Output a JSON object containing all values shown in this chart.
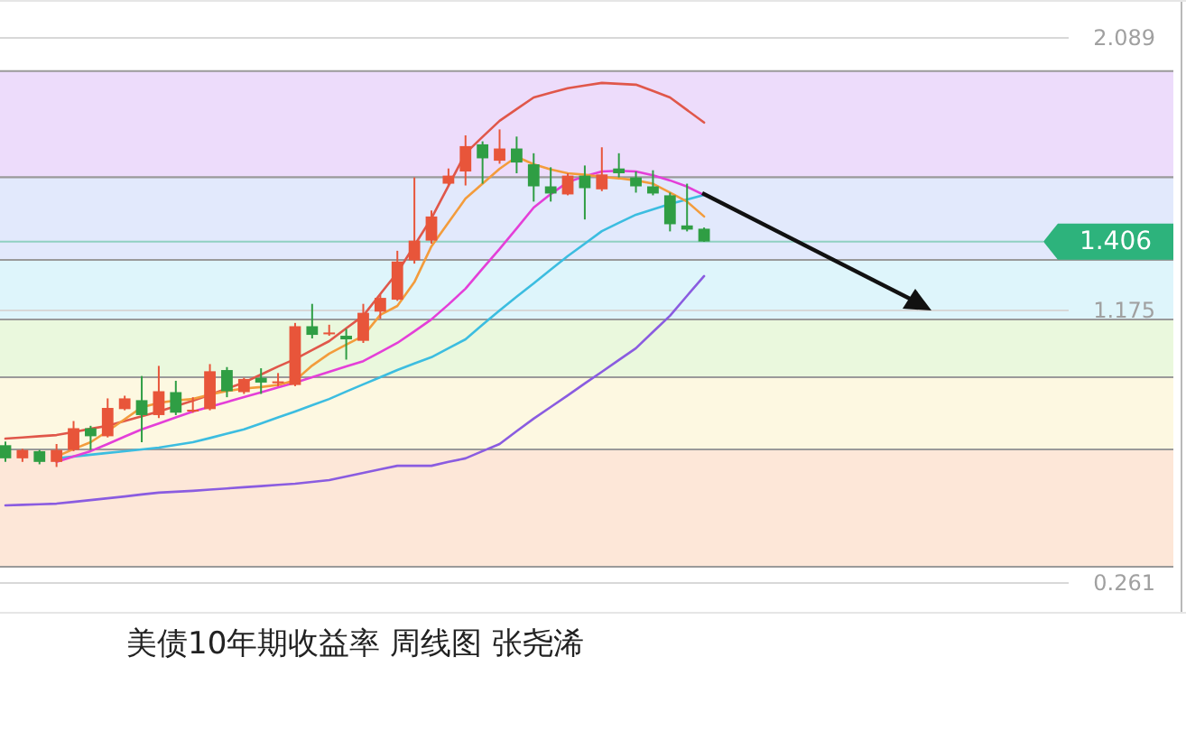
{
  "chart_data": {
    "type": "candlestick",
    "title": "美债10年期收益率  周线图 张尧浠",
    "categories": [
      null,
      null,
      null,
      null,
      null,
      null,
      null,
      null,
      null,
      null,
      null,
      null,
      null,
      null,
      null,
      null,
      null,
      null,
      null,
      null,
      null,
      null,
      null,
      null,
      null,
      null,
      null,
      null,
      null,
      null,
      null,
      null,
      null,
      null,
      null,
      null,
      null,
      null,
      null,
      null,
      null,
      null
    ],
    "ohlc": [
      [
        0.723,
        0.735,
        0.667,
        0.679
      ],
      [
        0.679,
        0.711,
        0.667,
        0.707
      ],
      [
        0.703,
        0.707,
        0.659,
        0.667
      ],
      [
        0.667,
        0.727,
        0.65,
        0.707
      ],
      [
        0.707,
        0.804,
        0.703,
        0.78
      ],
      [
        0.78,
        0.788,
        0.707,
        0.753
      ],
      [
        0.753,
        0.88,
        0.749,
        0.848
      ],
      [
        0.844,
        0.889,
        0.84,
        0.88
      ],
      [
        0.874,
        0.955,
        0.733,
        0.824
      ],
      [
        0.824,
        0.989,
        0.814,
        0.904
      ],
      [
        0.901,
        0.939,
        0.824,
        0.832
      ],
      [
        0.836,
        0.884,
        0.832,
        0.842
      ],
      [
        0.844,
        0.995,
        0.84,
        0.971
      ],
      [
        0.975,
        0.985,
        0.884,
        0.904
      ],
      [
        0.901,
        0.949,
        0.895,
        0.945
      ],
      [
        0.949,
        0.981,
        0.895,
        0.933
      ],
      [
        0.933,
        0.965,
        0.921,
        0.937
      ],
      [
        0.925,
        1.133,
        0.921,
        1.122
      ],
      [
        1.122,
        1.197,
        1.081,
        1.093
      ],
      [
        1.096,
        1.127,
        1.09,
        1.101
      ],
      [
        1.09,
        1.113,
        1.01,
        1.078
      ],
      [
        1.073,
        1.197,
        1.066,
        1.167
      ],
      [
        1.171,
        1.228,
        1.147,
        1.217
      ],
      [
        1.211,
        1.375,
        1.207,
        1.339
      ],
      [
        1.343,
        1.621,
        1.332,
        1.409
      ],
      [
        1.409,
        1.51,
        1.399,
        1.49
      ],
      [
        1.6,
        1.651,
        1.594,
        1.627
      ],
      [
        1.641,
        1.762,
        1.594,
        1.726
      ],
      [
        1.732,
        1.742,
        1.6,
        1.685
      ],
      [
        1.677,
        1.782,
        1.667,
        1.718
      ],
      [
        1.718,
        1.758,
        1.635,
        1.671
      ],
      [
        1.665,
        1.702,
        1.54,
        1.591
      ],
      [
        1.591,
        1.655,
        1.54,
        1.567
      ],
      [
        1.564,
        1.635,
        1.561,
        1.627
      ],
      [
        1.627,
        1.661,
        1.48,
        1.585
      ],
      [
        1.581,
        1.722,
        1.575,
        1.631
      ],
      [
        1.651,
        1.702,
        1.621,
        1.635
      ],
      [
        1.621,
        1.641,
        1.57,
        1.591
      ],
      [
        1.591,
        1.645,
        1.561,
        1.567
      ],
      [
        1.561,
        1.57,
        1.44,
        1.464
      ],
      [
        1.46,
        1.6,
        1.44,
        1.446
      ],
      [
        1.449,
        1.453,
        1.405,
        1.406
      ]
    ],
    "colors": [
      "#2f9e44",
      "#e8553a",
      "#2f9e44",
      "#e8553a",
      "#e8553a",
      "#2f9e44",
      "#e8553a",
      "#e8553a",
      "#2f9e44",
      "#e8553a",
      "#2f9e44",
      "#e8553a",
      "#e8553a",
      "#2f9e44",
      "#e8553a",
      "#2f9e44",
      "#e8553a",
      "#e8553a",
      "#2f9e44",
      "#e8553a",
      "#2f9e44",
      "#e8553a",
      "#e8553a",
      "#e8553a",
      "#e8553a",
      "#e8553a",
      "#e8553a",
      "#e8553a",
      "#2f9e44",
      "#e8553a",
      "#2f9e44",
      "#2f9e44",
      "#2f9e44",
      "#e8553a",
      "#2f9e44",
      "#e8553a",
      "#2f9e44",
      "#2f9e44",
      "#2f9e44",
      "#2f9e44",
      "#2f9e44",
      "#2f9e44"
    ],
    "series": [
      {
        "type": "line",
        "color": "#e0574a",
        "values": [
          0.745,
          0.749,
          0.753,
          0.757,
          0.767,
          0.778,
          0.788,
          0.804,
          0.82,
          0.836,
          0.854,
          0.872,
          0.892,
          0.913,
          0.933,
          0.96,
          0.987,
          1.012,
          1.042,
          1.072,
          1.115,
          1.157,
          1.23,
          1.302,
          1.393,
          1.484,
          1.593,
          1.702,
          1.757,
          1.811,
          1.85,
          1.889,
          1.905,
          1.92,
          1.929,
          1.938,
          1.935,
          1.932,
          1.911,
          1.889,
          1.847,
          1.805
        ]
      },
      {
        "type": "line",
        "color": "#8a5ce0",
        "values": [
          0.521,
          0.523,
          0.525,
          0.527,
          0.533,
          0.539,
          0.545,
          0.551,
          0.558,
          0.564,
          0.567,
          0.57,
          0.574,
          0.578,
          0.582,
          0.586,
          0.59,
          0.594,
          0.6,
          0.606,
          0.618,
          0.63,
          0.642,
          0.654,
          0.654,
          0.654,
          0.667,
          0.679,
          0.703,
          0.727,
          0.77,
          0.812,
          0.851,
          0.89,
          0.93,
          0.969,
          1.009,
          1.048,
          1.103,
          1.157,
          1.224,
          1.29
        ]
      },
      {
        "type": "line",
        "color": "#3cbde0",
        "values": [
          null,
          null,
          null,
          0.679,
          0.685,
          0.691,
          0.697,
          0.703,
          0.709,
          0.715,
          0.724,
          0.733,
          0.747,
          0.762,
          0.776,
          0.796,
          0.816,
          0.836,
          0.857,
          0.878,
          0.903,
          0.927,
          0.951,
          0.975,
          0.997,
          1.018,
          1.048,
          1.078,
          1.127,
          1.175,
          1.221,
          1.266,
          1.312,
          1.357,
          1.399,
          1.441,
          1.469,
          1.496,
          1.514,
          1.532,
          1.547,
          1.562
        ]
      },
      {
        "type": "line",
        "color": "#e43fd8",
        "values": [
          null,
          null,
          null,
          0.667,
          0.685,
          0.703,
          0.727,
          0.752,
          0.776,
          0.796,
          0.816,
          0.836,
          0.852,
          0.868,
          0.884,
          0.9,
          0.917,
          0.933,
          0.951,
          0.969,
          0.987,
          1.005,
          1.035,
          1.066,
          1.105,
          1.145,
          1.195,
          1.248,
          1.315,
          1.381,
          1.45,
          1.52,
          1.565,
          1.605,
          1.625,
          1.641,
          1.643,
          1.641,
          1.628,
          1.611,
          1.59,
          1.562
        ]
      },
      {
        "type": "line",
        "color": "#f39c3c",
        "values": [
          null,
          null,
          null,
          0.685,
          0.71,
          0.733,
          0.77,
          0.81,
          0.85,
          0.865,
          0.873,
          0.878,
          0.893,
          0.905,
          0.913,
          0.918,
          0.925,
          0.94,
          0.99,
          1.03,
          1.06,
          1.09,
          1.16,
          1.19,
          1.27,
          1.39,
          1.47,
          1.55,
          1.6,
          1.65,
          1.69,
          1.665,
          1.648,
          1.635,
          1.63,
          1.623,
          1.618,
          1.611,
          1.6,
          1.57,
          1.54,
          1.49
        ]
      }
    ],
    "ylim": [
      0.158,
      2.216
    ],
    "yticks": [
      2.089,
      1.175,
      0.261
    ],
    "grid": "y",
    "tick_labels": "y",
    "bands": [
      {
        "axis": "y",
        "from": 1.621,
        "to": 1.978,
        "color": "#eddcfb"
      },
      {
        "axis": "y",
        "from": 1.344,
        "to": 1.621,
        "color": "#e2e9fc"
      },
      {
        "axis": "y",
        "from": 1.145,
        "to": 1.344,
        "color": "#def5fb"
      },
      {
        "axis": "y",
        "from": 0.951,
        "to": 1.145,
        "color": "#eaf8dd"
      },
      {
        "axis": "y",
        "from": 0.709,
        "to": 0.951,
        "color": "#fdf8e1"
      },
      {
        "axis": "y",
        "from": 0.315,
        "to": 0.709,
        "color": "#fde7d8"
      }
    ],
    "ref_lines": [
      {
        "axis": "y",
        "value": 1.406,
        "label": "1.406",
        "color": "#2db37c"
      }
    ]
  }
}
